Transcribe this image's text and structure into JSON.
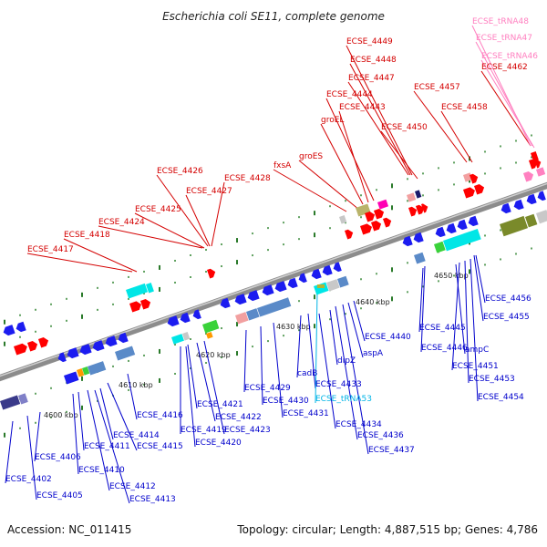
{
  "title": "Escherichia coli SE11, complete genome",
  "footer": {
    "accession": "Accession: NC_011415",
    "summary": "Topology: circular; Length: 4,887,515 bp; Genes: 4,786"
  },
  "colors": {
    "forward_label": "#d40000",
    "reverse_label": "#0000cc",
    "trna_label": "#ff80c0",
    "trna_label_rev": "#00b4e6",
    "backbone": "#8c8c8c"
  },
  "kbp_marks": [
    "4600 kbp",
    "4610 kbp",
    "4620 kbp",
    "4630 kbp",
    "4640 kbp",
    "4650 kbp"
  ],
  "forward_labels": [
    "ECSE_4417",
    "ECSE_4418",
    "ECSE_4424",
    "ECSE_4425",
    "ECSE_4426",
    "ECSE_4427",
    "ECSE_4428",
    "fxsA",
    "groES",
    "groEL",
    "ECSE_4443",
    "ECSE_4444",
    "ECSE_4447",
    "ECSE_4448",
    "ECSE_4449",
    "ECSE_4450",
    "ECSE_4457",
    "ECSE_4458",
    "ECSE_4462"
  ],
  "trna_forward_labels": [
    "ECSE_tRNA48",
    "ECSE_tRNA47",
    "ECSE_tRNA46"
  ],
  "reverse_labels": [
    "ECSE_4402",
    "ECSE_4405",
    "ECSE_4406",
    "ECSE_4410",
    "ECSE_4411",
    "ECSE_4412",
    "ECSE_4413",
    "ECSE_4414",
    "ECSE_4415",
    "ECSE_4416",
    "ECSE_4419",
    "ECSE_4420",
    "ECSE_4421",
    "ECSE_4422",
    "ECSE_4423",
    "ECSE_4429",
    "ECSE_4430",
    "ECSE_4431",
    "cadB",
    "ECSE_4433",
    "dipZ",
    "ECSE_4434",
    "ECSE_4436",
    "ECSE_4437",
    "aspA",
    "ECSE_4440",
    "ECSE_4445",
    "ECSE_4446",
    "ampC",
    "ECSE_4451",
    "ECSE_4453",
    "ECSE_4454",
    "ECSE_4455",
    "ECSE_4456"
  ],
  "trna_reverse_labels": [
    "ECSE_tRNA53"
  ]
}
